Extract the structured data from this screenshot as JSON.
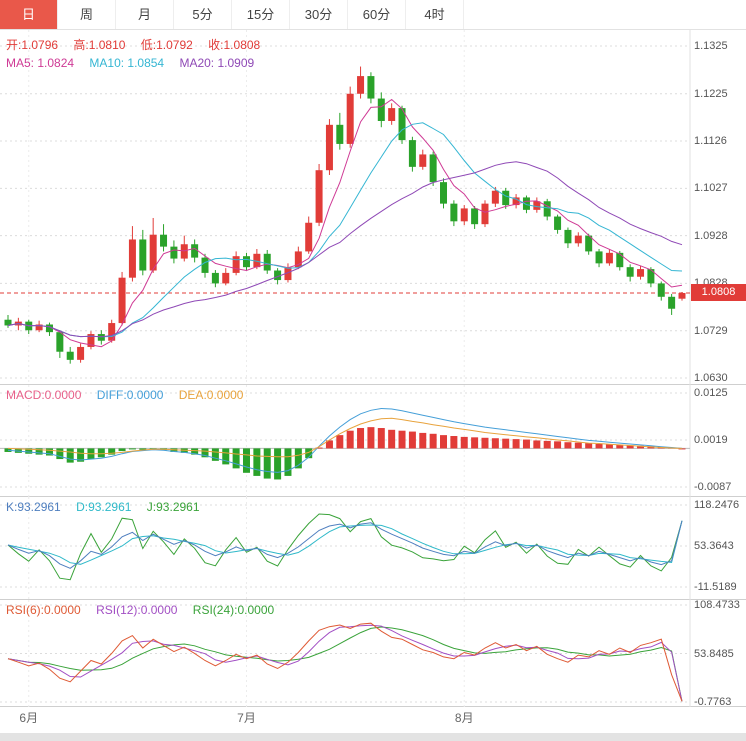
{
  "toolbar": {
    "tabs": [
      {
        "label": "日",
        "active": true
      },
      {
        "label": "周",
        "active": false
      },
      {
        "label": "月",
        "active": false
      },
      {
        "label": "5分",
        "active": false
      },
      {
        "label": "15分",
        "active": false
      },
      {
        "label": "30分",
        "active": false
      },
      {
        "label": "60分",
        "active": false
      },
      {
        "label": "4时",
        "active": false
      }
    ]
  },
  "panels": {
    "main": {
      "legend_ohlc": [
        "开:1.0796",
        "高:1.0810",
        "低:1.0792",
        "收:1.0808"
      ],
      "legend_ma": [
        "MA5: 1.0824",
        "MA10: 1.0854",
        "MA20: 1.0909"
      ],
      "axis_labels": [
        "1.1325",
        "1.1225",
        "1.1126",
        "1.1027",
        "1.0928",
        "1.0828",
        "1.0729",
        "1.0630"
      ],
      "axis_max": 1.1325,
      "axis_min": 1.063,
      "price_line": {
        "value": 1.0808,
        "label": "1.0808"
      }
    },
    "macd": {
      "legend": [
        "MACD:0.0000",
        "DIFF:0.0000",
        "DEA:0.0000"
      ],
      "axis_labels": [
        "0.0125",
        "0.0019",
        "-0.0087"
      ],
      "axis_max": 0.0125,
      "axis_min": -0.0087
    },
    "kdj": {
      "legend": [
        "K:93.2961",
        "D:93.2961",
        "J:93.2961"
      ],
      "axis_labels": [
        "118.2476",
        "53.3643",
        "-11.5189"
      ],
      "axis_max": 118.2476,
      "axis_min": -11.5189
    },
    "rsi": {
      "legend": [
        "RSI(6):0.0000",
        "RSI(12):0.0000",
        "RSI(24):0.0000"
      ],
      "axis_labels": [
        "108.4733",
        "53.8485",
        "-0.7763"
      ],
      "axis_max": 108.4733,
      "axis_min": -0.7763
    }
  },
  "x_axis": {
    "months": [
      {
        "label": "6月",
        "index": 2
      },
      {
        "label": "7月",
        "index": 23
      },
      {
        "label": "8月",
        "index": 44
      }
    ]
  },
  "colors": {
    "up": "#e13c38",
    "down": "#2aa22a",
    "ma5": "#cf3a95",
    "ma10": "#35b6d3",
    "ma20": "#8f49b6",
    "macd_label": "#e8608a",
    "diff": "#459fd8",
    "dea": "#e8a33d",
    "k": "#4f7fbf",
    "d": "#2fb9c9",
    "j": "#3aa33a",
    "rsi6": "#df5a35",
    "rsi12": "#a24fc4",
    "rsi24": "#3aa33a",
    "tab_active_bg": "#e9584a"
  },
  "chart_data": {
    "type": "candlestick",
    "timeframe": "日",
    "ohlc_last": {
      "open": 1.0796,
      "high": 1.081,
      "low": 1.0792,
      "close": 1.0808
    },
    "candles": [
      [
        1.0752,
        1.0762,
        1.0735,
        1.074
      ],
      [
        1.074,
        1.0756,
        1.073,
        1.0748
      ],
      [
        1.0748,
        1.0752,
        1.0722,
        1.073
      ],
      [
        1.073,
        1.075,
        1.0726,
        1.0742
      ],
      [
        1.0742,
        1.0746,
        1.0718,
        1.0726
      ],
      [
        1.0726,
        1.073,
        1.0672,
        1.0685
      ],
      [
        1.0685,
        1.0695,
        1.066,
        1.0668
      ],
      [
        1.0668,
        1.0702,
        1.0662,
        1.0695
      ],
      [
        1.0695,
        1.0728,
        1.069,
        1.0722
      ],
      [
        1.0722,
        1.073,
        1.07,
        1.0708
      ],
      [
        1.0708,
        1.0752,
        1.0704,
        1.0745
      ],
      [
        1.0745,
        1.0852,
        1.074,
        1.084
      ],
      [
        1.084,
        1.0948,
        1.0832,
        1.092
      ],
      [
        1.092,
        1.094,
        1.0845,
        1.0855
      ],
      [
        1.0855,
        1.0965,
        1.085,
        1.093
      ],
      [
        1.093,
        1.0952,
        1.0895,
        1.0905
      ],
      [
        1.0905,
        1.0918,
        1.087,
        1.088
      ],
      [
        1.088,
        1.0928,
        1.0874,
        1.091
      ],
      [
        1.091,
        1.092,
        1.0872,
        1.0882
      ],
      [
        1.0882,
        1.089,
        1.084,
        1.085
      ],
      [
        1.085,
        1.0856,
        1.082,
        1.0828
      ],
      [
        1.0828,
        1.086,
        1.0824,
        1.085
      ],
      [
        1.085,
        1.0895,
        1.0845,
        1.0885
      ],
      [
        1.0885,
        1.0892,
        1.0855,
        1.0862
      ],
      [
        1.0862,
        1.09,
        1.0858,
        1.089
      ],
      [
        1.089,
        1.0898,
        1.0848,
        1.0855
      ],
      [
        1.0855,
        1.086,
        1.0826,
        1.0835
      ],
      [
        1.0835,
        1.087,
        1.083,
        1.0862
      ],
      [
        1.0862,
        1.0905,
        1.0858,
        1.0895
      ],
      [
        1.0895,
        1.0968,
        1.089,
        1.0955
      ],
      [
        1.0955,
        1.1078,
        1.0948,
        1.1065
      ],
      [
        1.1065,
        1.1172,
        1.1055,
        1.116
      ],
      [
        1.116,
        1.1185,
        1.1108,
        1.112
      ],
      [
        1.112,
        1.124,
        1.1112,
        1.1225
      ],
      [
        1.1225,
        1.1282,
        1.1215,
        1.1262
      ],
      [
        1.1262,
        1.127,
        1.1205,
        1.1215
      ],
      [
        1.1215,
        1.1228,
        1.1155,
        1.1168
      ],
      [
        1.1168,
        1.1205,
        1.116,
        1.1195
      ],
      [
        1.1195,
        1.12,
        1.112,
        1.1128
      ],
      [
        1.1128,
        1.1135,
        1.1062,
        1.1072
      ],
      [
        1.1072,
        1.1108,
        1.1066,
        1.1098
      ],
      [
        1.1098,
        1.1104,
        1.1032,
        1.104
      ],
      [
        1.104,
        1.1048,
        1.0985,
        1.0995
      ],
      [
        1.0995,
        1.1002,
        1.0948,
        1.0958
      ],
      [
        1.0958,
        1.0992,
        1.095,
        1.0985
      ],
      [
        1.0985,
        1.099,
        1.0942,
        1.0952
      ],
      [
        1.0952,
        1.1002,
        1.0946,
        1.0995
      ],
      [
        1.0995,
        1.103,
        1.0988,
        1.1022
      ],
      [
        1.1022,
        1.1028,
        1.0984,
        1.0992
      ],
      [
        1.0992,
        1.1015,
        1.0985,
        1.1008
      ],
      [
        1.1008,
        1.1012,
        1.0975,
        1.0982
      ],
      [
        1.0982,
        1.1008,
        1.0976,
        1.1
      ],
      [
        1.1,
        1.1005,
        1.096,
        1.0968
      ],
      [
        1.0968,
        1.0972,
        1.0932,
        1.094
      ],
      [
        1.094,
        1.0945,
        1.0902,
        1.0912
      ],
      [
        1.0912,
        1.0935,
        1.0905,
        1.0928
      ],
      [
        1.0928,
        1.0932,
        1.0888,
        1.0895
      ],
      [
        1.0895,
        1.09,
        1.0862,
        1.087
      ],
      [
        1.087,
        1.09,
        1.0865,
        1.0892
      ],
      [
        1.0892,
        1.0896,
        1.0855,
        1.0862
      ],
      [
        1.0862,
        1.0868,
        1.0832,
        1.0842
      ],
      [
        1.0842,
        1.0865,
        1.0836,
        1.0858
      ],
      [
        1.0858,
        1.0862,
        1.082,
        1.0828
      ],
      [
        1.0828,
        1.0832,
        1.0792,
        1.08
      ],
      [
        1.08,
        1.0806,
        1.0762,
        1.0775
      ],
      [
        1.0796,
        1.081,
        1.0792,
        1.0808
      ]
    ],
    "ma_periods": [
      5,
      10,
      20
    ],
    "ma_last": [
      1.0824,
      1.0854,
      1.0909
    ],
    "macd": {
      "bar": [
        -0.0008,
        -0.001,
        -0.0012,
        -0.0014,
        -0.0016,
        -0.0024,
        -0.0032,
        -0.003,
        -0.0024,
        -0.002,
        -0.0014,
        -0.0006,
        -0.0002,
        -0.0003,
        -0.0002,
        -0.0004,
        -0.0008,
        -0.001,
        -0.0014,
        -0.002,
        -0.0028,
        -0.0036,
        -0.0045,
        -0.0055,
        -0.0062,
        -0.0068,
        -0.007,
        -0.0062,
        -0.0045,
        -0.0022,
        0.0002,
        0.0018,
        0.003,
        0.004,
        0.0046,
        0.0048,
        0.0046,
        0.0042,
        0.004,
        0.0038,
        0.0035,
        0.0033,
        0.003,
        0.0028,
        0.0026,
        0.0025,
        0.0024,
        0.0023,
        0.0022,
        0.0021,
        0.002,
        0.0018,
        0.0017,
        0.0016,
        0.0014,
        0.0013,
        0.0012,
        0.001,
        0.0009,
        0.0008,
        0.0007,
        0.0006,
        0.0005,
        0.0004,
        0.0002,
        0.0
      ],
      "diff": [
        -0.0004,
        -0.0006,
        -0.0008,
        -0.001,
        -0.0012,
        -0.0018,
        -0.0024,
        -0.0026,
        -0.0024,
        -0.0022,
        -0.0018,
        -0.0012,
        -0.0007,
        -0.0005,
        -0.0003,
        -0.0004,
        -0.0007,
        -0.0009,
        -0.0012,
        -0.0016,
        -0.0022,
        -0.0028,
        -0.0035,
        -0.0042,
        -0.0048,
        -0.0052,
        -0.0054,
        -0.005,
        -0.0038,
        -0.002,
        0.0005,
        0.0028,
        0.0048,
        0.0065,
        0.0078,
        0.0086,
        0.009,
        0.0089,
        0.0085,
        0.008,
        0.0075,
        0.007,
        0.0065,
        0.006,
        0.0056,
        0.0052,
        0.0048,
        0.0045,
        0.0042,
        0.0039,
        0.0036,
        0.0033,
        0.003,
        0.0027,
        0.0024,
        0.0021,
        0.0018,
        0.0016,
        0.0014,
        0.0012,
        0.001,
        0.0008,
        0.0006,
        0.0004,
        0.0002,
        0.0
      ],
      "last": {
        "macd": 0.0,
        "diff": 0.0,
        "dea": 0.0
      }
    },
    "kdj": {
      "k": [
        55,
        48,
        42,
        46,
        38,
        25,
        18,
        30,
        45,
        40,
        52,
        68,
        75,
        62,
        72,
        64,
        56,
        62,
        55,
        45,
        38,
        44,
        52,
        46,
        50,
        40,
        35,
        42,
        52,
        65,
        78,
        85,
        88,
        82,
        88,
        90,
        80,
        72,
        65,
        58,
        50,
        45,
        40,
        38,
        45,
        42,
        52,
        60,
        54,
        58,
        50,
        55,
        46,
        40,
        35,
        42,
        38,
        45,
        40,
        35,
        30,
        35,
        28,
        24,
        30,
        93.2961
      ],
      "last": {
        "k": 93.2961,
        "d": 93.2961,
        "j": 93.2961
      }
    },
    "rsi": {
      "r6": [
        48,
        44,
        40,
        43,
        36,
        26,
        22,
        34,
        46,
        42,
        54,
        68,
        74,
        60,
        70,
        63,
        56,
        61,
        54,
        46,
        40,
        46,
        53,
        48,
        52,
        42,
        37,
        44,
        55,
        68,
        80,
        84,
        86,
        82,
        87,
        88,
        79,
        72,
        70,
        64,
        58,
        55,
        50,
        48,
        55,
        52,
        60,
        66,
        60,
        64,
        57,
        62,
        53,
        48,
        44,
        52,
        50,
        57,
        53,
        60,
        55,
        63,
        66,
        70,
        30,
        0
      ],
      "last": [
        0.0,
        0.0,
        0.0
      ]
    }
  }
}
